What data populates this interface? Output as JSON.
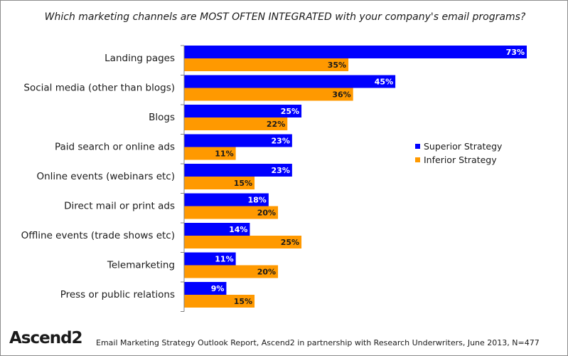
{
  "footer": {
    "logo_text": "Ascend2",
    "source": "Email Marketing Strategy Outlook Report, Ascend2 in partnership with Research Underwriters, June 2013, N=477"
  },
  "chart_data": {
    "type": "bar",
    "orientation": "horizontal",
    "title": "Which marketing channels are MOST OFTEN INTEGRATED with your company's email programs?",
    "categories": [
      "Landing pages",
      "Social media (other than blogs)",
      "Blogs",
      "Paid search or online ads",
      "Online events (webinars etc)",
      "Direct mail or print ads",
      "Offline events (trade shows etc)",
      "Telemarketing",
      "Press or public relations"
    ],
    "series": [
      {
        "name": "Superior Strategy",
        "color": "#0000ff",
        "values": [
          73,
          45,
          25,
          23,
          23,
          18,
          14,
          11,
          9
        ]
      },
      {
        "name": "Inferior Strategy",
        "color": "#ff9900",
        "values": [
          35,
          36,
          22,
          11,
          15,
          20,
          25,
          20,
          15
        ]
      }
    ],
    "value_suffix": "%",
    "xlim": [
      0,
      73
    ],
    "grid": false,
    "legend_position": "right"
  }
}
